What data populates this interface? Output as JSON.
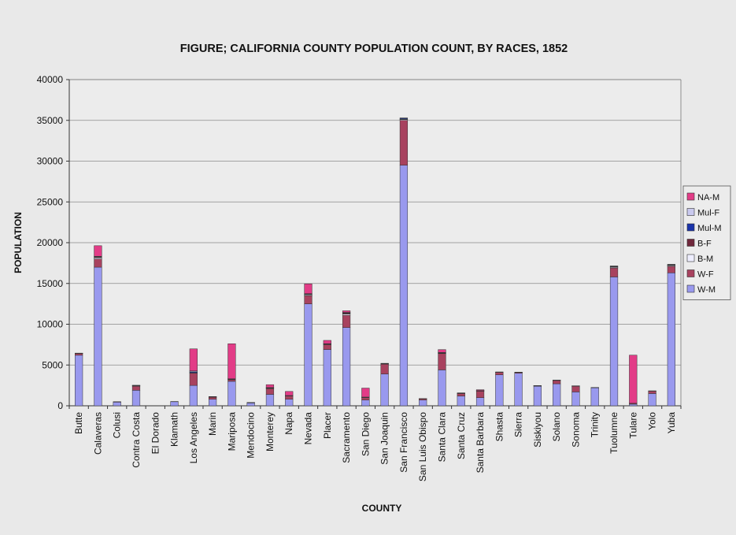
{
  "chart_data": {
    "type": "bar",
    "stacked": true,
    "title": "FIGURE; CALIFORNIA COUNTY POPULATION COUNT, BY RACES, 1852",
    "xlabel": "COUNTY",
    "ylabel": "POPULATION",
    "ylim": [
      0,
      40000
    ],
    "yticks": [
      0,
      5000,
      10000,
      15000,
      20000,
      25000,
      30000,
      35000,
      40000
    ],
    "grid": true,
    "legend_position": "right",
    "categories": [
      "Butte",
      "Calaveras",
      "Colusi",
      "Contra Costa",
      "El Dorado",
      "Klamath",
      "Los Angeles",
      "Marin",
      "Mariposa",
      "Mendocino",
      "Monterey",
      "Napa",
      "Nevada",
      "Placer",
      "Sacramento",
      "San Diego",
      "San Joaquin",
      "San Francisco",
      "San Luis Obispo",
      "Santa Clara",
      "Santa Cruz",
      "Santa Barbara",
      "Shasta",
      "Sierra",
      "Siskiyou",
      "Solano",
      "Sonoma",
      "Trinity",
      "Tuolumne",
      "Tulare",
      "Yolo",
      "Yuba"
    ],
    "series": [
      {
        "name": "W-M",
        "color": "#9999ee",
        "values": [
          6200,
          17000,
          450,
          1900,
          0,
          500,
          2500,
          800,
          3000,
          350,
          1400,
          800,
          12500,
          6900,
          9600,
          700,
          3900,
          29500,
          700,
          4400,
          1200,
          1000,
          3800,
          4000,
          2400,
          2700,
          1700,
          2200,
          15800,
          200,
          1500,
          16300
        ]
      },
      {
        "name": "W-F",
        "color": "#a8425f",
        "values": [
          200,
          1000,
          60,
          500,
          0,
          30,
          1500,
          250,
          200,
          50,
          700,
          400,
          1000,
          600,
          1500,
          300,
          1200,
          5500,
          150,
          2000,
          300,
          800,
          300,
          100,
          50,
          400,
          700,
          30,
          1100,
          100,
          300,
          800
        ]
      },
      {
        "name": "B-M",
        "color": "#eeeeff",
        "values": [
          20,
          150,
          0,
          50,
          0,
          0,
          50,
          10,
          50,
          0,
          50,
          20,
          100,
          50,
          150,
          20,
          50,
          100,
          10,
          50,
          10,
          20,
          20,
          10,
          5,
          20,
          20,
          5,
          100,
          0,
          10,
          100
        ]
      },
      {
        "name": "B-F",
        "color": "#70283c",
        "values": [
          10,
          100,
          0,
          20,
          0,
          0,
          30,
          5,
          30,
          0,
          30,
          10,
          50,
          30,
          100,
          10,
          20,
          50,
          5,
          30,
          5,
          10,
          10,
          5,
          5,
          10,
          10,
          5,
          50,
          0,
          5,
          50
        ]
      },
      {
        "name": "Mul-M",
        "color": "#1a33aa",
        "values": [
          20,
          50,
          0,
          30,
          0,
          0,
          100,
          10,
          20,
          5,
          30,
          20,
          50,
          20,
          50,
          20,
          20,
          100,
          10,
          30,
          10,
          20,
          10,
          10,
          5,
          10,
          10,
          5,
          50,
          5,
          10,
          50
        ]
      },
      {
        "name": "Mul-F",
        "color": "#c9c9ee",
        "values": [
          10,
          30,
          0,
          20,
          0,
          0,
          100,
          10,
          10,
          5,
          30,
          10,
          50,
          20,
          50,
          20,
          20,
          50,
          10,
          30,
          10,
          20,
          10,
          5,
          5,
          10,
          10,
          5,
          50,
          5,
          5,
          50
        ]
      },
      {
        "name": "NA-M",
        "color": "#e23c87",
        "values": [
          0,
          1300,
          0,
          0,
          0,
          0,
          2700,
          50,
          4300,
          0,
          350,
          500,
          1200,
          400,
          200,
          1100,
          0,
          0,
          0,
          350,
          50,
          100,
          0,
          0,
          0,
          0,
          0,
          0,
          0,
          5900,
          0,
          0
        ]
      }
    ]
  }
}
